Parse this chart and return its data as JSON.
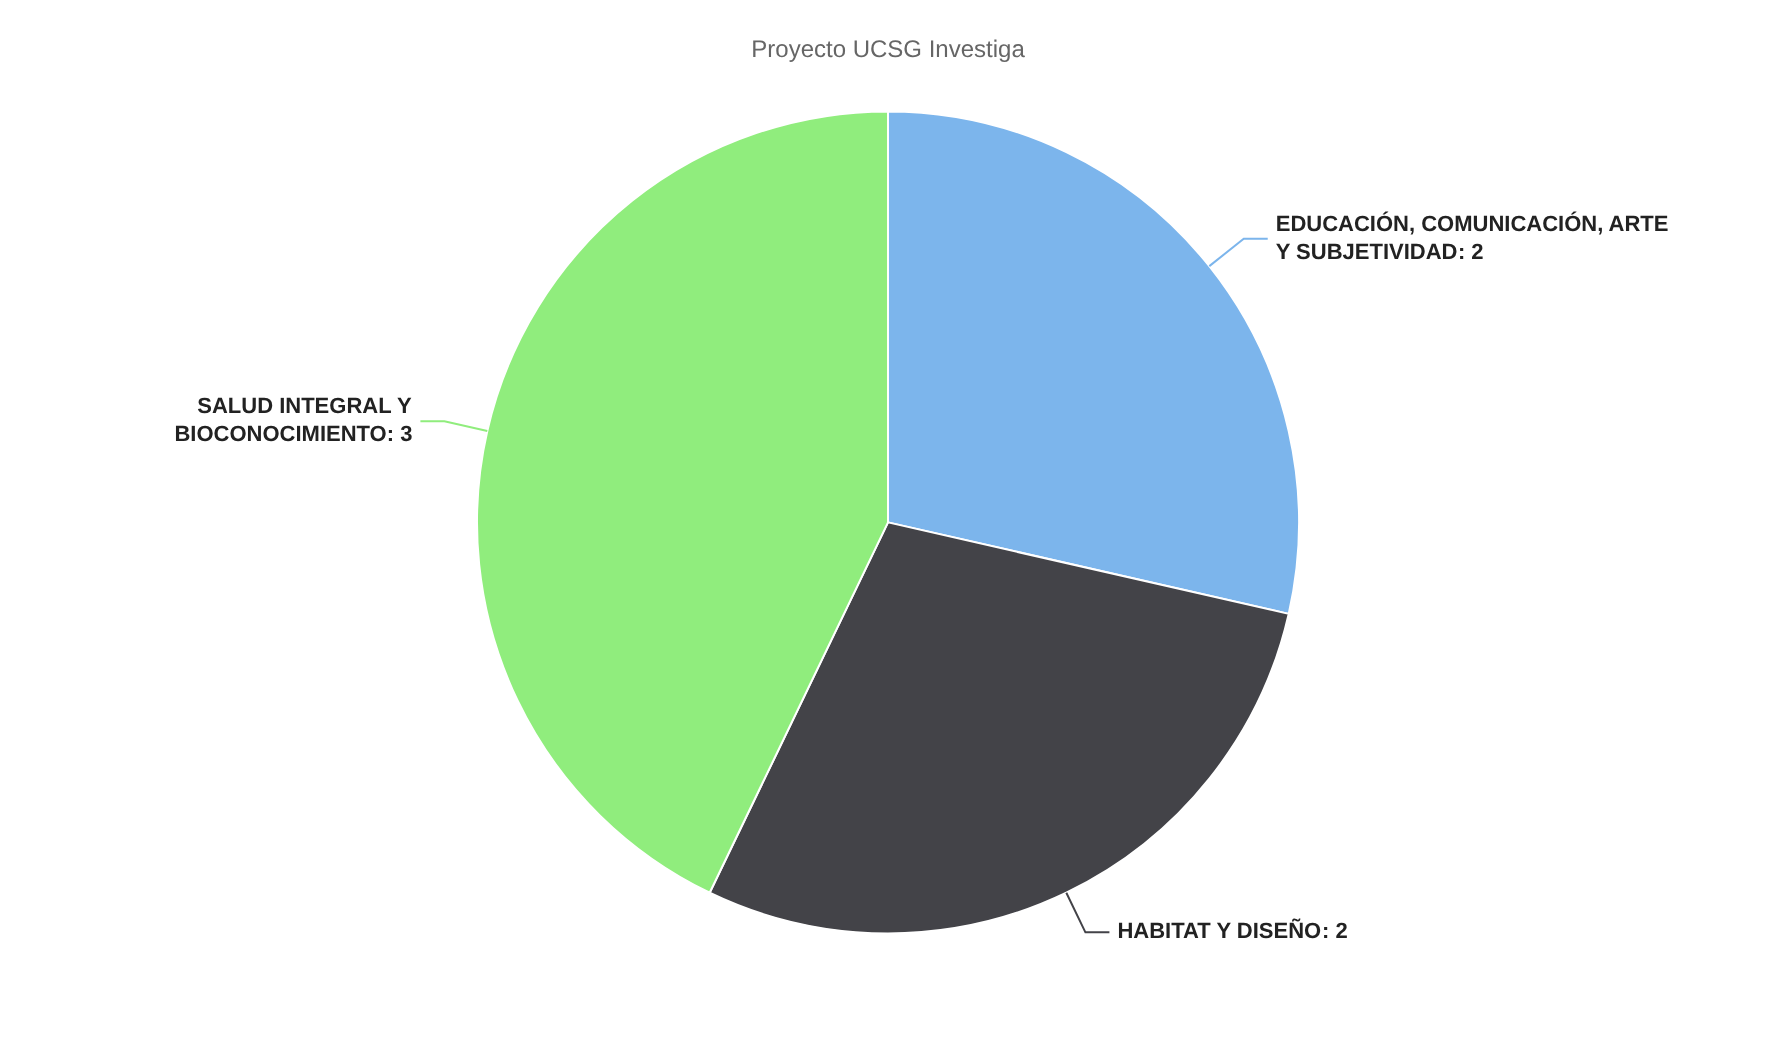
{
  "chart_data": {
    "type": "pie",
    "subtitle": "Proyecto UCSG Investiga",
    "categories": [
      "EDUCACIÓN, COMUNICACIÓN, ARTE Y SUBJETIVIDAD",
      "HABITAT Y DISEÑO",
      "SALUD INTEGRAL Y BIOCONOCIMIENTO"
    ],
    "values": [
      2,
      2,
      3
    ],
    "colors": [
      "#7cb5ec",
      "#434348",
      "#90ed7d"
    ],
    "value_labels": [
      ": 2",
      ": 2",
      ": 3"
    ],
    "legend": false
  }
}
